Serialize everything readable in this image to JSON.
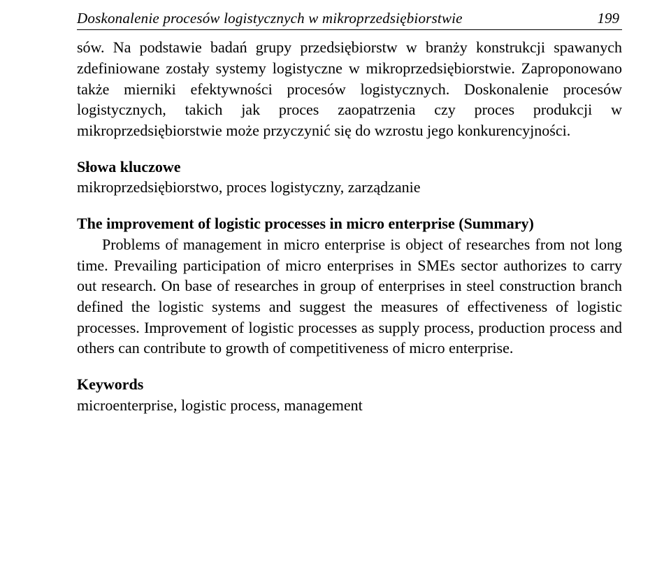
{
  "header": {
    "running_title": "Doskonalenie procesów logistycznych w mikroprzedsiębiorstwie",
    "page_number": "199"
  },
  "body": {
    "paragraph1": "sów. Na podstawie badań grupy przedsiębiorstw w branży konstrukcji spawa­nych zdefiniowane zostały systemy logistyczne w mikroprzedsiębiorstwie. Za­proponowano także mierniki efektywności procesów logistycznych. Doskona­lenie procesów logistycznych, takich jak proces zaopatrzenia czy proces pro­dukcji w mikroprzedsiębiorstwie może przyczynić się do wzrostu jego konku­rencyjności."
  },
  "slowa": {
    "heading": "Słowa kluczowe",
    "text": "mikroprzedsiębiorstwo, proces logistyczny, zarządzanie"
  },
  "summary": {
    "heading": "The improvement of logistic processes in micro enterprise (Summary)",
    "text": "Problems of management in micro enterprise is object of researches from not long time. Prevailing participation of micro enterprises in SMEs sector au­thorizes to carry out research. On base of researches in group of enterprises in steel construction branch defined the logistic systems and suggest the measures of effectiveness of logistic processes. Improvement of logistic processes as sup­ply process, production process and others can contribute to growth of competi­tiveness of micro enterprise."
  },
  "keywords": {
    "heading": "Keywords",
    "text": "microenterprise, logistic process, management"
  }
}
